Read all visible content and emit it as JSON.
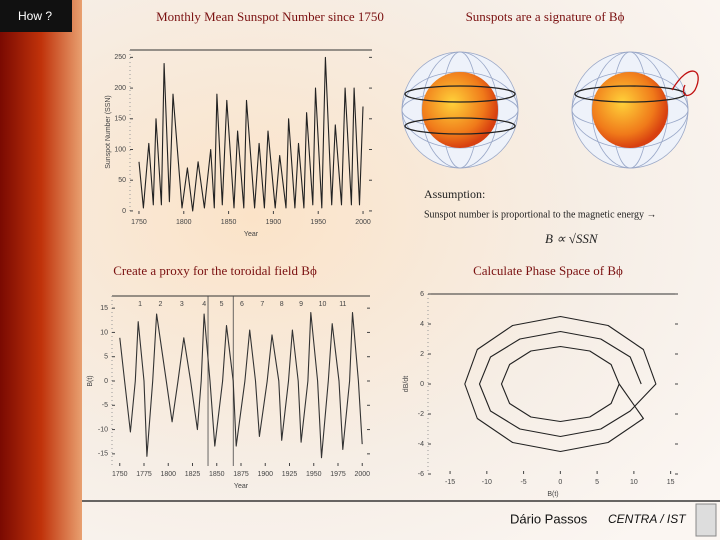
{
  "header": {
    "badge": "How ?"
  },
  "sphere_title": "Sunspots are a signature of Bϕ",
  "assumption": {
    "heading": "Assumption:",
    "text": "Sunspot number is proportional to the magnetic energy →",
    "formula": "B ∝ √SSN"
  },
  "footer": {
    "author": "Dário Passos",
    "affiliation": "CENTRA / IST"
  },
  "chart_data": [
    {
      "type": "line",
      "title": "Monthly Mean Sunspot Number since 1750",
      "x_label": "Year",
      "y_label": "Sunspot Number (SSN)",
      "xlim": [
        1740,
        2010
      ],
      "ylim": [
        -5,
        262
      ],
      "xticks": [
        1750,
        1800,
        1850,
        1900,
        1950,
        2000
      ],
      "yticks": [
        0,
        50,
        100,
        150,
        200,
        250
      ],
      "x": [
        1750,
        1755,
        1761,
        1766,
        1769,
        1775,
        1778,
        1784,
        1788,
        1798,
        1804,
        1810,
        1816,
        1823,
        1830,
        1834,
        1837,
        1843,
        1848,
        1856,
        1860,
        1867,
        1870,
        1879,
        1884,
        1890,
        1894,
        1902,
        1907,
        1914,
        1917,
        1924,
        1928,
        1934,
        1937,
        1944,
        1947,
        1954,
        1958,
        1965,
        1969,
        1976,
        1980,
        1987,
        1990,
        1996,
        2000
      ],
      "series": [
        {
          "color": "#222222",
          "values": [
            80,
            5,
            110,
            10,
            150,
            10,
            240,
            15,
            190,
            5,
            70,
            0,
            80,
            5,
            100,
            5,
            190,
            10,
            180,
            5,
            130,
            5,
            180,
            5,
            110,
            5,
            130,
            5,
            90,
            5,
            150,
            5,
            110,
            5,
            160,
            10,
            200,
            5,
            250,
            10,
            140,
            10,
            200,
            10,
            200,
            10,
            170
          ]
        }
      ]
    },
    {
      "type": "line",
      "title": "Create a proxy for the toroidal field Bϕ",
      "x_label": "Year",
      "y_label": "B(t)",
      "xlim": [
        1742,
        2008
      ],
      "ylim": [
        -17.5,
        17.5
      ],
      "xticks": [
        1750,
        1775,
        1800,
        1825,
        1850,
        1875,
        1900,
        1925,
        1950,
        1975,
        2000
      ],
      "yticks": [
        -15,
        -10,
        -5,
        0,
        5,
        10,
        15
      ],
      "cycle_labels": {
        "x": [
          1771,
          1792,
          1814,
          1837,
          1855,
          1876,
          1897,
          1917,
          1937,
          1959,
          1980
        ],
        "labels": [
          1,
          2,
          3,
          4,
          5,
          6,
          7,
          8,
          9,
          10,
          11
        ]
      },
      "reference_lines": [
        1841,
        1867
      ],
      "x": [
        1750,
        1755,
        1761,
        1766,
        1769,
        1775,
        1778,
        1784,
        1788,
        1798,
        1804,
        1810,
        1816,
        1823,
        1830,
        1834,
        1837,
        1843,
        1848,
        1856,
        1860,
        1867,
        1870,
        1879,
        1884,
        1890,
        1894,
        1902,
        1907,
        1914,
        1917,
        1924,
        1928,
        1934,
        1937,
        1944,
        1947,
        1954,
        1958,
        1965,
        1969,
        1976,
        1980,
        1987,
        1990,
        1996,
        2000
      ],
      "series": [
        {
          "color": "#333333",
          "values": [
            8.9,
            0,
            -10.5,
            0,
            12.2,
            0,
            -15.5,
            0,
            13.8,
            0,
            -8.4,
            0,
            8.9,
            0,
            -10,
            0,
            13.8,
            0,
            -13.4,
            0,
            11.4,
            0,
            -13.4,
            0,
            10.5,
            0,
            -11.4,
            0,
            9.5,
            0,
            -12.2,
            0,
            10.5,
            0,
            -12.6,
            0,
            14.1,
            0,
            -15.8,
            0,
            11.8,
            0,
            -14.1,
            0,
            14.1,
            0,
            -13.0
          ]
        }
      ]
    },
    {
      "type": "line",
      "title": "Calculate Phase Space of Bϕ",
      "x_label": "B(t)",
      "y_label": "dB/dt",
      "xlim": [
        -18,
        16
      ],
      "ylim": [
        -6,
        6
      ],
      "xticks": [
        -15,
        -10,
        -5,
        0,
        5,
        10,
        15
      ],
      "yticks": [
        -6,
        -4,
        -2,
        0,
        2,
        4,
        6
      ],
      "x": [
        11,
        9.5,
        5.5,
        0,
        -5.5,
        -9.5,
        -11,
        -9.5,
        -5.5,
        0,
        5.5,
        9.5,
        13,
        11.3,
        6.5,
        0,
        -6.5,
        -11.3,
        -13,
        -11.3,
        -6.5,
        0,
        6.5,
        11.3,
        8,
        6.9,
        4,
        0,
        -4,
        -6.9,
        -8,
        -6.9,
        -4,
        0,
        4,
        6.9,
        8
      ],
      "series": [
        {
          "color": "#222222",
          "values": [
            0,
            1.8,
            3,
            3.5,
            3,
            1.8,
            0,
            -1.8,
            -3,
            -3.5,
            -3,
            -1.8,
            0,
            2.3,
            3.9,
            4.5,
            3.9,
            2.3,
            0,
            -2.3,
            -3.9,
            -4.5,
            -3.9,
            -2.3,
            0,
            1.3,
            2.2,
            2.5,
            2.2,
            1.3,
            0,
            -1.3,
            -2.2,
            -2.5,
            -2.2,
            -1.3,
            0
          ]
        }
      ]
    }
  ]
}
